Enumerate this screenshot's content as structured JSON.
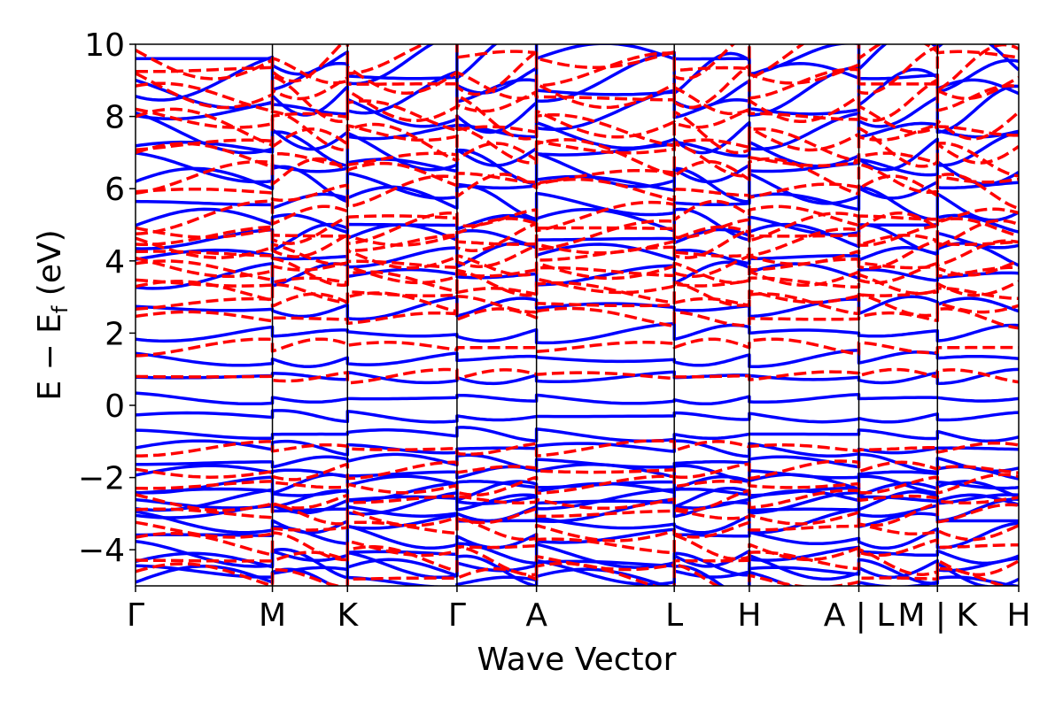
{
  "chart_data": {
    "type": "line",
    "xlabel": "Wave Vector",
    "ylabel_main": "E − E",
    "ylabel_sub": "f",
    "ylabel_unit": " (eV)",
    "ylim": [
      -5,
      10
    ],
    "yticks": [
      -4,
      -2,
      0,
      2,
      4,
      6,
      8,
      10
    ],
    "ytick_labels": [
      "−4",
      "−2",
      "0",
      "2",
      "4",
      "6",
      "8",
      "10"
    ],
    "xlim": [
      0,
      1
    ],
    "kpath": [
      {
        "label": "Γ",
        "x": 0.0
      },
      {
        "label": "M",
        "x": 0.155
      },
      {
        "label": "K",
        "x": 0.24
      },
      {
        "label": "Γ",
        "x": 0.364
      },
      {
        "label": "A",
        "x": 0.454
      },
      {
        "label": "L",
        "x": 0.61
      },
      {
        "label": "H",
        "x": 0.695
      },
      {
        "label": "A | L",
        "x": 0.819
      },
      {
        "label": "M | K",
        "x": 0.908
      },
      {
        "label": "H",
        "x": 1.0
      }
    ],
    "series": [
      {
        "style": "solid",
        "color": "#0000ff",
        "bands_y": [
          -4.9,
          -4.6,
          -4.4,
          -4.1,
          -3.6,
          -3.2,
          -2.9,
          -2.7,
          -2.6,
          -2.4,
          -2.2,
          -1.9,
          -1.6,
          -1.2,
          -0.8,
          -0.3,
          0.2,
          0.8,
          1.3,
          2.0,
          2.7,
          3.6,
          4.1,
          4.6,
          5.0,
          5.6,
          6.1,
          6.6,
          7.1,
          7.6,
          8.2,
          8.7,
          9.1,
          9.6
        ]
      },
      {
        "style": "dashed",
        "color": "#ff0000",
        "bands_y": [
          -4.8,
          -4.3,
          -3.9,
          -3.4,
          -3.0,
          -2.6,
          -2.2,
          -1.8,
          -1.2,
          0.8,
          1.6,
          2.4,
          2.8,
          3.1,
          3.4,
          3.7,
          3.9,
          4.2,
          4.5,
          4.7,
          4.9,
          5.2,
          5.9,
          6.3,
          6.8,
          7.2,
          7.6,
          8.0,
          8.5,
          8.9,
          9.3,
          9.7
        ]
      }
    ]
  }
}
